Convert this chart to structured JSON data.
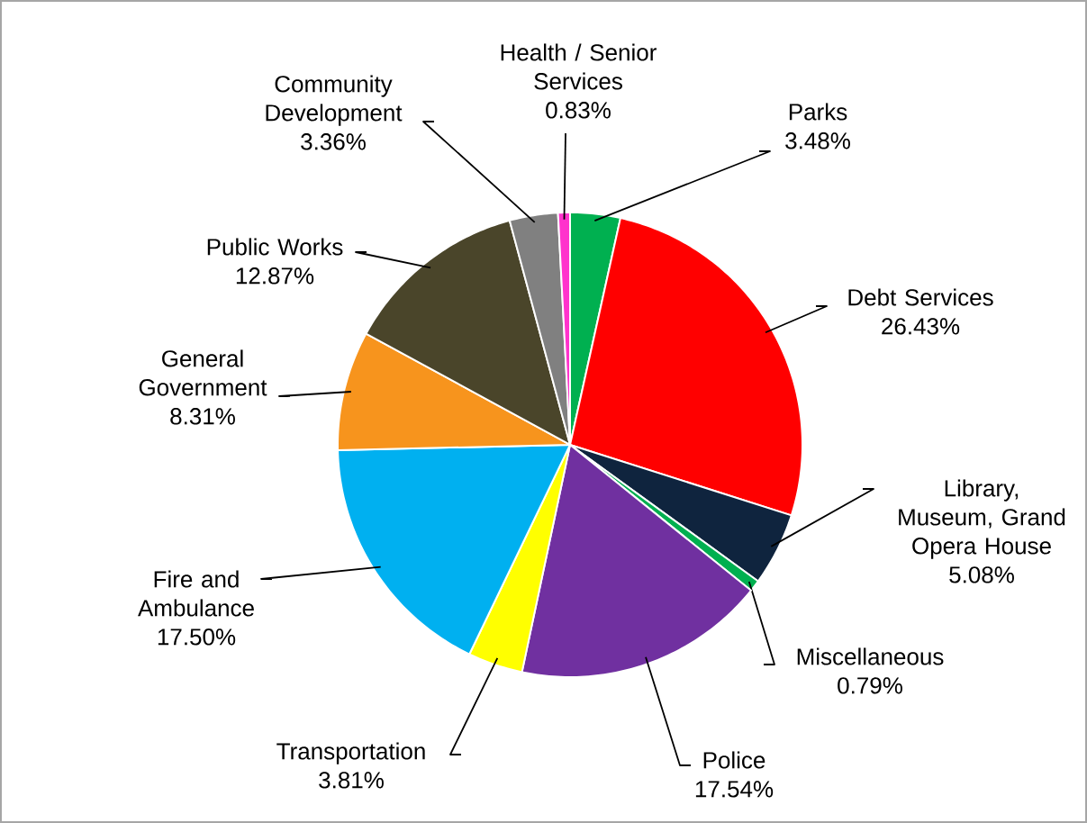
{
  "chart_data": {
    "type": "pie",
    "categories": [
      "Parks",
      "Debt Services",
      "Library, Museum, Grand Opera House",
      "Miscellaneous",
      "Police",
      "Transportation",
      "Fire and Ambulance",
      "General Government",
      "Public Works",
      "Community Development",
      "Health / Senior Services"
    ],
    "values": [
      3.48,
      26.43,
      5.08,
      0.79,
      17.54,
      3.81,
      17.5,
      8.31,
      12.87,
      3.36,
      0.83
    ],
    "value_labels": [
      "3.48%",
      "26.43%",
      "5.08%",
      "0.79%",
      "17.54%",
      "3.81%",
      "17.50%",
      "8.31%",
      "12.87%",
      "3.36%",
      "0.83%"
    ],
    "colors": [
      "#00b050",
      "#ff0000",
      "#0f243e",
      "#00b050",
      "#7030a0",
      "#ffff00",
      "#00b0f0",
      "#f7941d",
      "#4a452a",
      "#808080",
      "#ff33cc"
    ]
  }
}
